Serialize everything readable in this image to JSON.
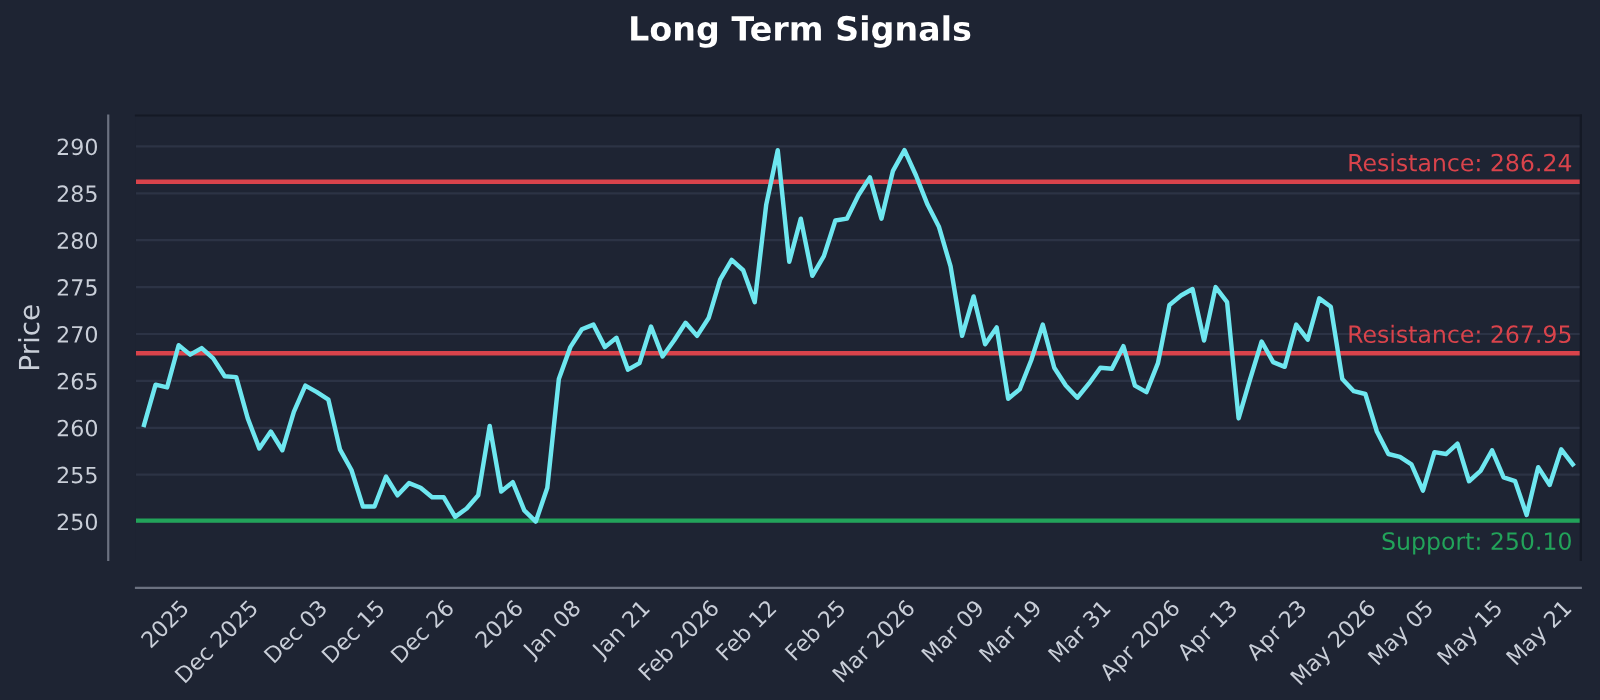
{
  "chart_data": {
    "type": "line",
    "title": "Long Term Signals",
    "ylabel": "Price",
    "categories": [
      null,
      null,
      null,
      "2025",
      null,
      null,
      null,
      null,
      null,
      "Dec 2025",
      null,
      null,
      null,
      null,
      null,
      "Dec 03",
      null,
      null,
      null,
      null,
      "Dec 15",
      null,
      null,
      null,
      null,
      null,
      "Dec 26",
      null,
      null,
      null,
      null,
      null,
      "2026",
      null,
      null,
      null,
      null,
      "Jan 08",
      null,
      null,
      null,
      null,
      null,
      "Jan 21",
      null,
      null,
      null,
      null,
      null,
      "Feb 2026",
      null,
      null,
      null,
      null,
      "Feb 12",
      null,
      null,
      null,
      null,
      null,
      "Feb 25",
      null,
      null,
      null,
      null,
      null,
      "Mar 2026",
      null,
      null,
      null,
      null,
      null,
      "Mar 09",
      null,
      null,
      null,
      null,
      "Mar 19",
      null,
      null,
      null,
      null,
      null,
      "Mar 31",
      null,
      null,
      null,
      null,
      null,
      "Apr 2026",
      null,
      null,
      null,
      null,
      "Apr 13",
      null,
      null,
      null,
      null,
      null,
      "Apr 23",
      null,
      null,
      null,
      null,
      null,
      "May 2026",
      null,
      null,
      null,
      null,
      "May 05",
      null,
      null,
      null,
      null,
      null,
      "May 15",
      null,
      null,
      null,
      null,
      null,
      "May 21",
      null
    ],
    "series": [
      {
        "color": "#6ee7f0",
        "values": [
          260.3,
          264.6,
          264.3,
          268.8,
          267.8,
          268.5,
          267.4,
          265.5,
          265.4,
          261.0,
          257.8,
          259.6,
          257.6,
          261.7,
          264.5,
          263.8,
          263.0,
          257.7,
          255.5,
          251.6,
          251.6,
          254.8,
          252.8,
          254.1,
          253.6,
          252.6,
          252.6,
          250.5,
          251.4,
          252.8,
          260.2,
          253.2,
          254.2,
          251.2,
          250.0,
          253.6,
          265.2,
          268.6,
          270.5,
          271.0,
          268.6,
          269.6,
          266.2,
          266.9,
          270.8,
          267.6,
          269.3,
          271.2,
          269.8,
          271.7,
          275.8,
          277.9,
          276.8,
          273.4,
          283.8,
          289.6,
          277.7,
          282.3,
          276.2,
          278.3,
          282.1,
          282.3,
          284.8,
          286.7,
          282.3,
          287.4,
          289.6,
          286.9,
          283.8,
          281.4,
          277.2,
          269.8,
          274.0,
          268.9,
          270.7,
          263.1,
          264.1,
          267.2,
          271.0,
          266.4,
          264.5,
          263.2,
          264.7,
          266.4,
          266.3,
          268.7,
          264.5,
          263.8,
          266.9,
          273.1,
          274.1,
          274.8,
          269.3,
          275.0,
          273.4,
          261.0,
          265.2,
          269.2,
          267.0,
          266.5,
          271.0,
          269.4,
          273.8,
          272.9,
          265.2,
          263.9,
          263.6,
          259.6,
          257.2,
          256.9,
          256.1,
          253.3,
          257.4,
          257.2,
          258.3,
          254.3,
          255.4,
          257.6,
          254.7,
          254.3,
          250.7,
          255.8,
          253.9,
          257.7,
          256.1
        ]
      }
    ],
    "ylim": [
      245.9,
      293.3
    ],
    "yticks": [
      250,
      255,
      260,
      265,
      270,
      275,
      280,
      285,
      290
    ],
    "grid": "y",
    "ref_lines": [
      {
        "axis": "y",
        "value": 286.24,
        "label": "Resistance: 286.24",
        "color": "#d9434b"
      },
      {
        "axis": "y",
        "value": 267.95,
        "label": "Resistance: 267.95",
        "color": "#d9434b"
      },
      {
        "axis": "y",
        "value": 250.1,
        "label": "Support: 250.10",
        "color": "#22a35a"
      }
    ]
  }
}
